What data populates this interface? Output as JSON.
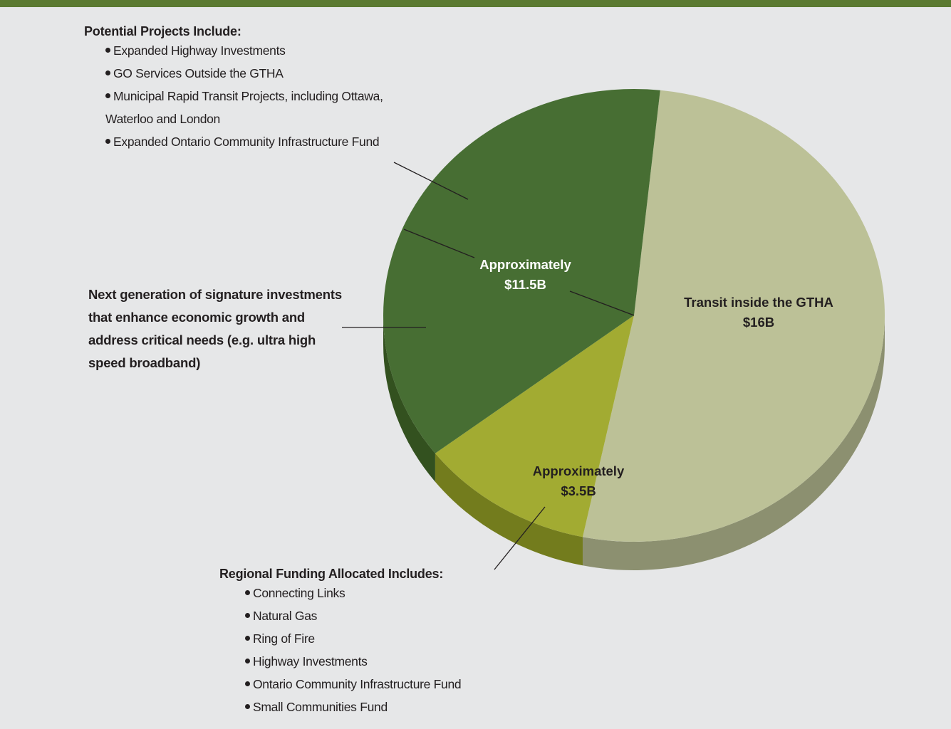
{
  "colors": {
    "background": "#e6e7e8",
    "top_bar": "#5b7a31",
    "slice_transit": "#bcc197",
    "slice_transit_side": "#8c9070",
    "slice_11_5": "#476e33",
    "slice_11_5_side": "#33511f",
    "slice_3_5": "#a2ab32",
    "slice_3_5_side": "#737c1d",
    "text": "#231f20"
  },
  "chart_data": {
    "type": "pie",
    "slices": [
      {
        "label": "Transit inside the GTHA",
        "value": 16,
        "value_text": "$16B"
      },
      {
        "label": "Approximately",
        "value": 3.5,
        "value_text": "$3.5B"
      },
      {
        "label": "Approximately",
        "value": 11.5,
        "value_text": "$11.5B"
      }
    ]
  },
  "annotations": {
    "projects": {
      "heading": "Potential Projects Include:",
      "items": [
        "Expanded Highway Investments",
        "GO Services Outside the GTHA",
        "Municipal Rapid Transit Projects, including Ottawa,",
        "Expanded Ontario Community Infrastructure Fund"
      ],
      "item3_cont": "Waterloo and London"
    },
    "signature": "Next generation of signature investments that enhance economic growth and address critical needs (e.g. ultra high speed broadband)",
    "regional": {
      "heading": "Regional Funding Allocated Includes:",
      "items": [
        "Connecting Links",
        "Natural Gas",
        "Ring of Fire",
        "Highway Investments",
        "Ontario Community Infrastructure Fund",
        "Small Communities Fund"
      ]
    }
  }
}
